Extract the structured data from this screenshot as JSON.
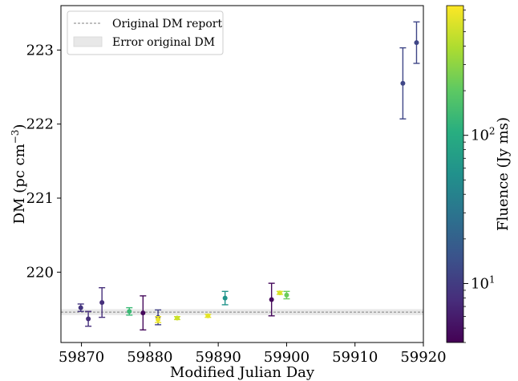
{
  "chart_data": {
    "type": "scatter",
    "title": "",
    "xlabel": "Modified Julian Day",
    "ylabel_main": "DM (pc cm",
    "ylabel_sup": "−3",
    "ylabel_close": ")",
    "xlim": [
      59867,
      59920
    ],
    "ylim": [
      219.05,
      223.6
    ],
    "x_ticks": [
      59870,
      59880,
      59890,
      59900,
      59910,
      59920
    ],
    "y_ticks": [
      220,
      221,
      222,
      223
    ],
    "grid": false,
    "legend": {
      "placement": "top-left",
      "entries": [
        {
          "label": "Original DM report",
          "kind": "dashed-line",
          "color": "#808080"
        },
        {
          "label": "Error original DM",
          "kind": "patch",
          "color": "#e8e8e8"
        }
      ]
    },
    "reference_line": {
      "y": 219.46,
      "style": "dashed",
      "color": "#808080"
    },
    "reference_band": {
      "y_low": 219.42,
      "y_high": 219.5,
      "color": "#e8e8e8"
    },
    "colorbar": {
      "label": "Fluence (Jy ms)",
      "scale": "log",
      "range": [
        4,
        750
      ],
      "tick_labels": [
        {
          "base": "10",
          "exp": "1",
          "value": 10
        },
        {
          "base": "10",
          "exp": "2",
          "value": 100
        }
      ],
      "colormap": "viridis"
    },
    "points": [
      {
        "x": 59869.9,
        "y": 219.52,
        "err": 0.05,
        "fluence": 9
      },
      {
        "x": 59871.0,
        "y": 219.37,
        "err": 0.1,
        "fluence": 8
      },
      {
        "x": 59873.0,
        "y": 219.59,
        "err": 0.2,
        "fluence": 8
      },
      {
        "x": 59877.0,
        "y": 219.47,
        "err": 0.05,
        "fluence": 140
      },
      {
        "x": 59879.0,
        "y": 219.45,
        "err": 0.23,
        "fluence": 4.5
      },
      {
        "x": 59881.2,
        "y": 219.39,
        "err": 0.1,
        "fluence": 11
      },
      {
        "x": 59881.2,
        "y": 219.36,
        "err": 0.04,
        "fluence": 650
      },
      {
        "x": 59884.0,
        "y": 219.38,
        "err": 0.02,
        "fluence": 500
      },
      {
        "x": 59888.5,
        "y": 219.41,
        "err": 0.02,
        "fluence": 620
      },
      {
        "x": 59891.0,
        "y": 219.65,
        "err": 0.09,
        "fluence": 60
      },
      {
        "x": 59897.8,
        "y": 219.63,
        "err": 0.22,
        "fluence": 4.5
      },
      {
        "x": 59899.0,
        "y": 219.72,
        "err": 0.02,
        "fluence": 560
      },
      {
        "x": 59900.0,
        "y": 219.69,
        "err": 0.05,
        "fluence": 230
      },
      {
        "x": 59917.0,
        "y": 222.55,
        "err": 0.48,
        "fluence": 12
      },
      {
        "x": 59919.0,
        "y": 223.1,
        "err": 0.28,
        "fluence": 12
      }
    ]
  }
}
